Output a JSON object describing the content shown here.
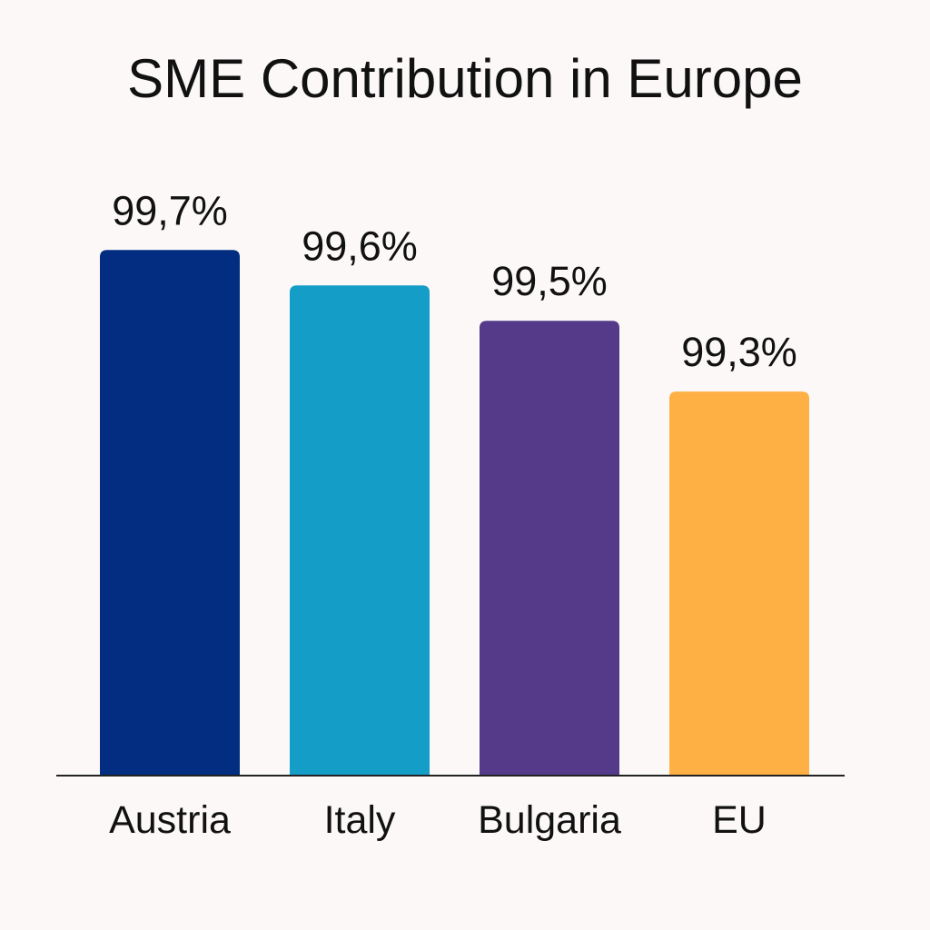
{
  "chart_data": {
    "type": "bar",
    "title": "SME Contribution in Europe",
    "xlabel": "",
    "ylabel": "",
    "categories": [
      "Austria",
      "Italy",
      "Bulgaria",
      "EU"
    ],
    "values": [
      99.7,
      99.6,
      99.5,
      99.3
    ],
    "value_labels": [
      "99,7%",
      "99,6%",
      "99,5%",
      "99,3%"
    ],
    "colors": [
      "#022d80",
      "#149dc7",
      "#543a88",
      "#feb045"
    ],
    "grid": false,
    "legend": "none"
  }
}
